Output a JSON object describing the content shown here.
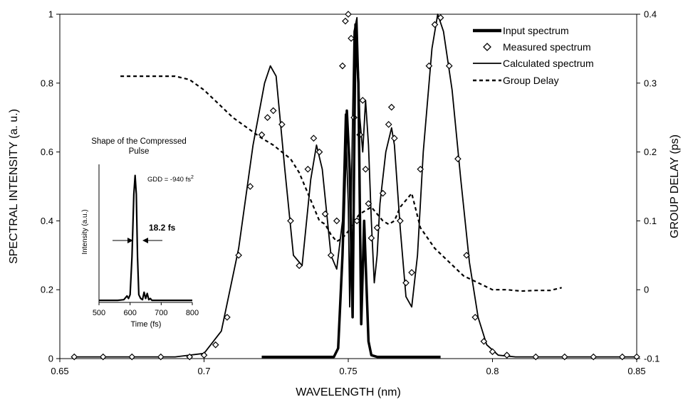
{
  "chart_data": {
    "type": "line",
    "xlabel": "WAVELENGTH (nm)",
    "ylabel": "SPECTRAL INTENSITY (a. u.)",
    "y2label": "GROUP DELAY (ps)",
    "xlim": [
      0.65,
      0.85
    ],
    "ylim": [
      0,
      1
    ],
    "y2lim": [
      -0.1,
      0.4
    ],
    "x_ticks": [
      "0.65",
      "0.7",
      "0.75",
      "0.8",
      "0.85"
    ],
    "y_ticks": [
      "0",
      "0.2",
      "0.4",
      "0.6",
      "0.8",
      "1"
    ],
    "y2_ticks": [
      "-0.1",
      "0",
      "0.1",
      "0.2",
      "0.3",
      "0.4"
    ],
    "legend_position": "top-right",
    "series": [
      {
        "name": "Input spectrum",
        "style": "thick-line",
        "axis": "left",
        "x": [
          0.72,
          0.745,
          0.7465,
          0.748,
          0.7495,
          0.7505,
          0.7515,
          0.7525,
          0.7535,
          0.7545,
          0.7555,
          0.757,
          0.758,
          0.76,
          0.782
        ],
        "y": [
          0.005,
          0.005,
          0.03,
          0.3,
          0.72,
          0.55,
          0.12,
          0.97,
          0.8,
          0.1,
          0.4,
          0.05,
          0.01,
          0.005,
          0.005
        ]
      },
      {
        "name": "Measured spectrum",
        "style": "diamond-markers",
        "axis": "left",
        "x": [
          0.655,
          0.665,
          0.675,
          0.685,
          0.695,
          0.7,
          0.704,
          0.708,
          0.712,
          0.716,
          0.72,
          0.722,
          0.724,
          0.727,
          0.73,
          0.733,
          0.736,
          0.738,
          0.74,
          0.742,
          0.744,
          0.746,
          0.748,
          0.749,
          0.75,
          0.751,
          0.752,
          0.753,
          0.754,
          0.755,
          0.756,
          0.757,
          0.758,
          0.76,
          0.762,
          0.764,
          0.765,
          0.766,
          0.768,
          0.77,
          0.772,
          0.775,
          0.778,
          0.78,
          0.782,
          0.785,
          0.788,
          0.791,
          0.794,
          0.797,
          0.8,
          0.805,
          0.815,
          0.825,
          0.835,
          0.845,
          0.85
        ],
        "y": [
          0.005,
          0.005,
          0.005,
          0.005,
          0.005,
          0.01,
          0.04,
          0.12,
          0.3,
          0.5,
          0.65,
          0.7,
          0.72,
          0.68,
          0.4,
          0.27,
          0.55,
          0.64,
          0.6,
          0.42,
          0.3,
          0.4,
          0.85,
          0.98,
          1.0,
          0.93,
          0.7,
          0.4,
          0.65,
          0.75,
          0.55,
          0.45,
          0.35,
          0.38,
          0.48,
          0.68,
          0.73,
          0.64,
          0.4,
          0.22,
          0.25,
          0.55,
          0.85,
          0.97,
          0.99,
          0.85,
          0.58,
          0.3,
          0.12,
          0.05,
          0.02,
          0.01,
          0.005,
          0.005,
          0.005,
          0.005,
          0.005
        ]
      },
      {
        "name": "Calculated spectrum",
        "style": "thin-line",
        "axis": "left",
        "x": [
          0.655,
          0.69,
          0.7,
          0.706,
          0.712,
          0.717,
          0.721,
          0.723,
          0.725,
          0.728,
          0.731,
          0.734,
          0.737,
          0.739,
          0.741,
          0.744,
          0.746,
          0.748,
          0.749,
          0.75,
          0.7505,
          0.7512,
          0.752,
          0.753,
          0.754,
          0.755,
          0.756,
          0.757,
          0.758,
          0.759,
          0.76,
          0.761,
          0.763,
          0.765,
          0.766,
          0.768,
          0.77,
          0.772,
          0.774,
          0.776,
          0.779,
          0.781,
          0.783,
          0.786,
          0.789,
          0.792,
          0.795,
          0.798,
          0.802,
          0.808,
          0.83,
          0.85
        ],
        "y": [
          0.005,
          0.005,
          0.015,
          0.08,
          0.32,
          0.62,
          0.8,
          0.85,
          0.82,
          0.55,
          0.3,
          0.27,
          0.52,
          0.62,
          0.55,
          0.3,
          0.26,
          0.4,
          0.71,
          0.45,
          0.15,
          0.55,
          0.95,
          0.99,
          0.7,
          0.6,
          0.75,
          0.62,
          0.4,
          0.22,
          0.3,
          0.45,
          0.6,
          0.67,
          0.62,
          0.38,
          0.18,
          0.15,
          0.3,
          0.6,
          0.9,
          1.0,
          0.95,
          0.78,
          0.52,
          0.28,
          0.12,
          0.04,
          0.01,
          0.005,
          0.005,
          0.005
        ]
      },
      {
        "name": "Group Delay",
        "style": "dashed-line",
        "axis": "right",
        "x": [
          0.671,
          0.69,
          0.695,
          0.7,
          0.705,
          0.71,
          0.715,
          0.72,
          0.724,
          0.727,
          0.73,
          0.733,
          0.736,
          0.738,
          0.74,
          0.742,
          0.744,
          0.746,
          0.748,
          0.75,
          0.752,
          0.754,
          0.756,
          0.758,
          0.76,
          0.762,
          0.764,
          0.766,
          0.768,
          0.77,
          0.772,
          0.775,
          0.78,
          0.785,
          0.79,
          0.795,
          0.8,
          0.805,
          0.81,
          0.815,
          0.82,
          0.824
        ],
        "y": [
          0.31,
          0.31,
          0.305,
          0.29,
          0.27,
          0.25,
          0.235,
          0.22,
          0.21,
          0.2,
          0.19,
          0.17,
          0.14,
          0.12,
          0.1,
          0.095,
          0.08,
          0.07,
          0.075,
          0.085,
          0.1,
          0.11,
          0.115,
          0.12,
          0.11,
          0.1,
          0.095,
          0.1,
          0.12,
          0.13,
          0.14,
          0.09,
          0.06,
          0.04,
          0.02,
          0.01,
          0.0,
          0.0,
          -0.002,
          -0.001,
          -0.001,
          0.003
        ]
      }
    ],
    "inset": {
      "title_line1": "Shape of the Compressed",
      "title_line2": "Pulse",
      "annotation": "GDD = -940 fs",
      "annotation_sup": "2",
      "width_label": "18.2 fs",
      "xlabel": "Time (fs)",
      "ylabel": "Intensity (a.u.)",
      "x_ticks": [
        "500",
        "600",
        "700",
        "800"
      ],
      "xlim": [
        500,
        800
      ],
      "ylim": [
        0,
        1.1
      ],
      "pulse_x": [
        500,
        560,
        580,
        590,
        595,
        600,
        606,
        612,
        616,
        620,
        624,
        628,
        634,
        640,
        645,
        650,
        655,
        660,
        665,
        670,
        800
      ],
      "pulse_y": [
        0.005,
        0.005,
        0.01,
        0.04,
        0.02,
        0.05,
        0.35,
        0.85,
        1.0,
        0.85,
        0.35,
        0.05,
        0.02,
        0.01,
        0.07,
        0.02,
        0.06,
        0.01,
        0.02,
        0.005,
        0.005
      ]
    }
  }
}
